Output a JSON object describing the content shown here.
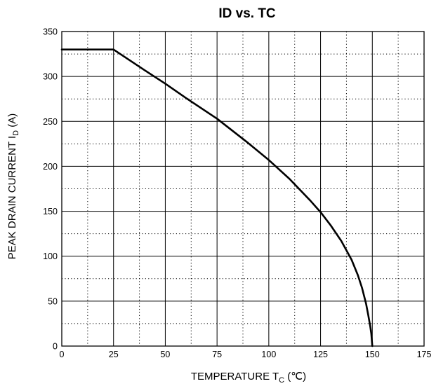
{
  "chart_data": {
    "type": "line",
    "title": "ID vs. TC",
    "xlabel": {
      "prefix": "TEMPERATURE  T",
      "subscript": "C",
      "suffix": " (℃)"
    },
    "ylabel": {
      "prefix": "PEAK DRAIN CURRENT  I",
      "subscript": "D",
      "suffix": " (A)"
    },
    "xlim": [
      0,
      175
    ],
    "ylim": [
      0,
      350
    ],
    "xticks": [
      0,
      25,
      50,
      75,
      100,
      125,
      150,
      175
    ],
    "yticks": [
      0,
      50,
      100,
      150,
      200,
      250,
      300,
      350
    ],
    "x_minor_step": 12.5,
    "y_minor_step": 25,
    "grid": {
      "major": "solid",
      "minor": "dotted"
    },
    "legend": "none",
    "series": [
      {
        "color": "#000000",
        "x": [
          0,
          25,
          40,
          50,
          60,
          75,
          90,
          100,
          110,
          120,
          125,
          130,
          135,
          140,
          143,
          145,
          147,
          148,
          149,
          149.5,
          150
        ],
        "y": [
          330,
          330,
          307,
          292,
          276,
          253,
          226,
          207,
          186,
          162,
          149,
          134,
          117,
          96,
          79,
          65,
          47,
          35,
          22,
          14,
          0
        ]
      }
    ]
  }
}
